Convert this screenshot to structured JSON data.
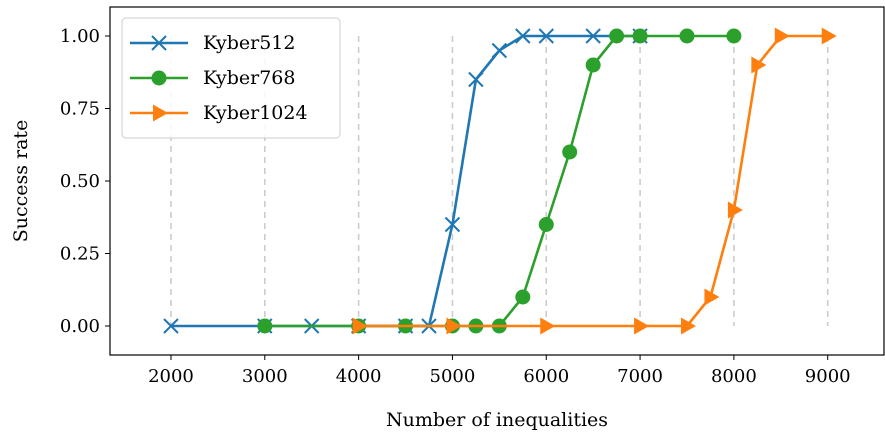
{
  "chart_data": {
    "type": "line",
    "title": "",
    "xlabel": "Number of inequalities",
    "ylabel": "Success rate",
    "xlim": [
      1350,
      9600
    ],
    "ylim": [
      -0.1,
      1.1
    ],
    "xticks": [
      2000,
      3000,
      4000,
      5000,
      6000,
      7000,
      8000,
      9000
    ],
    "xtick_labels": [
      "2000",
      "3000",
      "4000",
      "5000",
      "6000",
      "7000",
      "8000",
      "9000"
    ],
    "yticks": [
      0,
      0.25,
      0.5,
      0.75,
      1.0
    ],
    "ytick_labels": [
      "0.00",
      "0.25",
      "0.50",
      "0.75",
      "1.00"
    ],
    "grid": "vertical dashed lines at x ticks",
    "legend_position": "top-left",
    "series": [
      {
        "name": "Kyber512",
        "color": "#1f77b4",
        "marker": "x",
        "x": [
          2000,
          3000,
          3500,
          4000,
          4500,
          4750,
          5000,
          5250,
          5500,
          5750,
          6000,
          6500,
          7000
        ],
        "y": [
          0,
          0,
          0,
          0,
          0,
          0,
          0.35,
          0.85,
          0.95,
          1.0,
          1.0,
          1.0,
          1.0
        ]
      },
      {
        "name": "Kyber768",
        "color": "#2ca02c",
        "marker": "circle",
        "x": [
          3000,
          4000,
          4500,
          5000,
          5250,
          5500,
          5750,
          6000,
          6250,
          6500,
          6750,
          7000,
          7500,
          8000
        ],
        "y": [
          0,
          0,
          0,
          0,
          0,
          0,
          0.1,
          0.35,
          0.6,
          0.9,
          1.0,
          1.0,
          1.0,
          1.0
        ]
      },
      {
        "name": "Kyber1024",
        "color": "#ff7f0e",
        "marker": "triangle-right",
        "x": [
          4000,
          5000,
          6000,
          7000,
          7500,
          7750,
          8000,
          8250,
          8500,
          9000
        ],
        "y": [
          0,
          0,
          0,
          0,
          0,
          0.1,
          0.4,
          0.9,
          1.0,
          1.0
        ]
      }
    ]
  }
}
